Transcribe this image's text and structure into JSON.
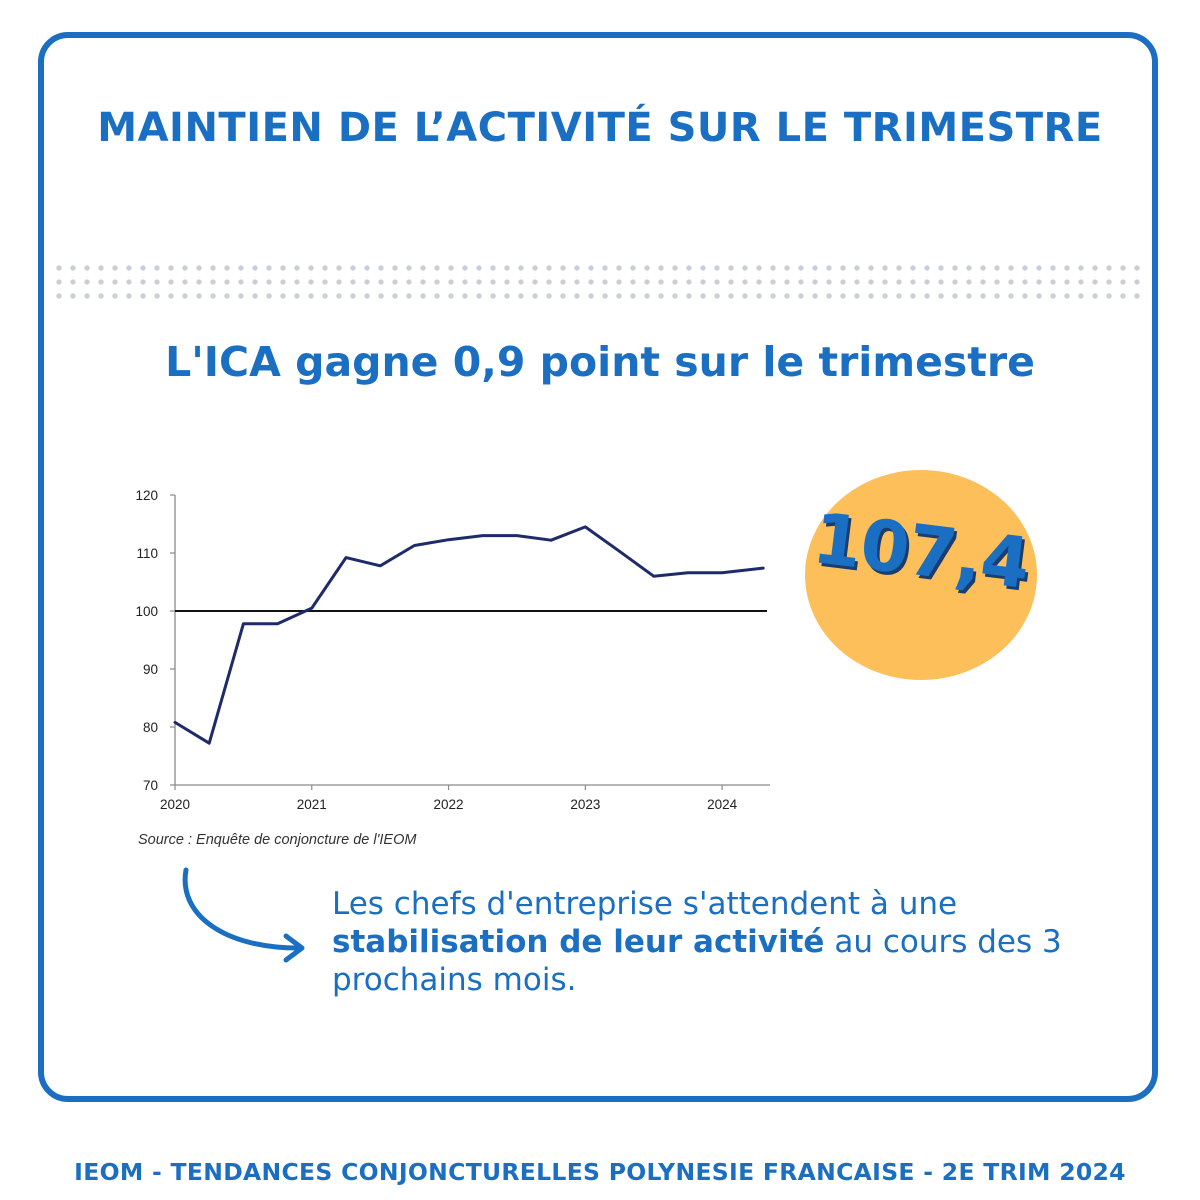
{
  "title": "MAINTIEN DE L’ACTIVITÉ SUR LE TRIMESTRE",
  "subtitle": "L'ICA gagne 0,9 point sur le trimestre",
  "badge": {
    "value": "107,4"
  },
  "note": {
    "before": "Les chefs d'entreprise s'attendent à une ",
    "bold": "stabilisation de leur activité",
    "after": " au cours des 3 prochains mois."
  },
  "footer": "IEOM - TENDANCES CONJONCTURELLES POLYNESIE FRANCAISE - 2E TRIM 2024",
  "colors": {
    "brand_blue": "#1a6fc2",
    "line_navy": "#1f2a6b",
    "badge_orange": "#fdbf5a",
    "dots_grey": "#c9cfd6"
  },
  "chart_data": {
    "type": "line",
    "title": "",
    "xlabel": "",
    "ylabel": "",
    "source": "Source : Enquête de conjoncture de l'IEOM",
    "xlim": [
      2020,
      2024.35
    ],
    "ylim": [
      70,
      120
    ],
    "yticks": [
      70,
      80,
      90,
      100,
      110,
      120
    ],
    "xticks": [
      2020,
      2021,
      2022,
      2023,
      2024
    ],
    "reference_line": 100,
    "grid": false,
    "legend": "none",
    "series": [
      {
        "x": [
          2020.0,
          2020.25,
          2020.5,
          2020.75,
          2021.0,
          2021.25,
          2021.5,
          2021.75,
          2022.0,
          2022.25,
          2022.5,
          2022.75,
          2023.0,
          2023.25,
          2023.5,
          2023.75,
          2024.0,
          2024.3
        ],
        "values": [
          80.8,
          77.2,
          97.8,
          97.8,
          100.5,
          109.2,
          107.8,
          111.3,
          112.3,
          113.0,
          113.0,
          112.2,
          114.5,
          110.3,
          106.0,
          106.6,
          106.6,
          107.4
        ]
      }
    ]
  }
}
